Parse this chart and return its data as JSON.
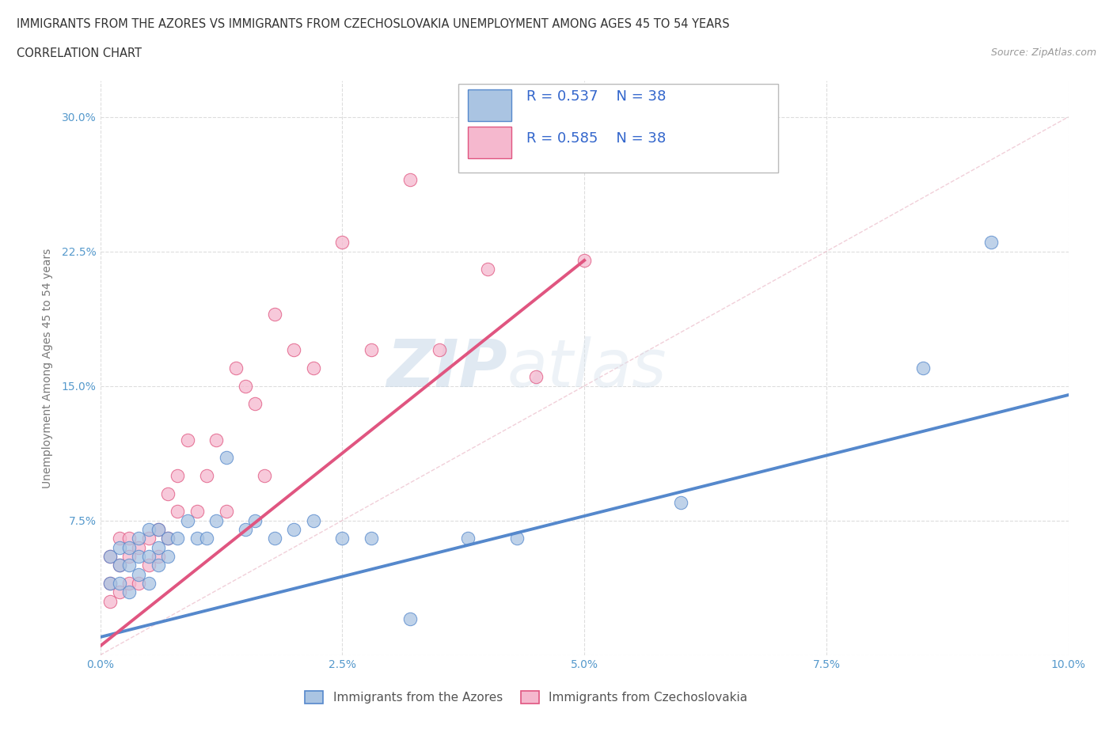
{
  "title_line1": "IMMIGRANTS FROM THE AZORES VS IMMIGRANTS FROM CZECHOSLOVAKIA UNEMPLOYMENT AMONG AGES 45 TO 54 YEARS",
  "title_line2": "CORRELATION CHART",
  "source": "Source: ZipAtlas.com",
  "ylabel": "Unemployment Among Ages 45 to 54 years",
  "legend_label1": "Immigrants from the Azores",
  "legend_label2": "Immigrants from Czechoslovakia",
  "R1": 0.537,
  "N1": 38,
  "R2": 0.585,
  "N2": 38,
  "color1": "#aac4e2",
  "color2": "#f5b8ce",
  "line1_color": "#5588cc",
  "line2_color": "#e05580",
  "xlim": [
    0.0,
    0.1
  ],
  "ylim": [
    0.0,
    0.32
  ],
  "xticks": [
    0.0,
    0.025,
    0.05,
    0.075,
    0.1
  ],
  "xtick_labels": [
    "0.0%",
    "2.5%",
    "5.0%",
    "7.5%",
    "10.0%"
  ],
  "yticks": [
    0.0,
    0.075,
    0.15,
    0.225,
    0.3
  ],
  "ytick_labels": [
    "",
    "7.5%",
    "15.0%",
    "22.5%",
    "30.0%"
  ],
  "watermark_zip": "ZIP",
  "watermark_atlas": "atlas",
  "azores_x": [
    0.001,
    0.001,
    0.002,
    0.002,
    0.002,
    0.003,
    0.003,
    0.003,
    0.004,
    0.004,
    0.004,
    0.005,
    0.005,
    0.005,
    0.006,
    0.006,
    0.006,
    0.007,
    0.007,
    0.008,
    0.009,
    0.01,
    0.011,
    0.012,
    0.013,
    0.015,
    0.016,
    0.018,
    0.02,
    0.022,
    0.025,
    0.028,
    0.032,
    0.038,
    0.043,
    0.06,
    0.085,
    0.092
  ],
  "azores_y": [
    0.04,
    0.055,
    0.04,
    0.05,
    0.06,
    0.035,
    0.05,
    0.06,
    0.045,
    0.055,
    0.065,
    0.04,
    0.055,
    0.07,
    0.05,
    0.06,
    0.07,
    0.055,
    0.065,
    0.065,
    0.075,
    0.065,
    0.065,
    0.075,
    0.11,
    0.07,
    0.075,
    0.065,
    0.07,
    0.075,
    0.065,
    0.065,
    0.02,
    0.065,
    0.065,
    0.085,
    0.16,
    0.23
  ],
  "czech_x": [
    0.001,
    0.001,
    0.001,
    0.002,
    0.002,
    0.002,
    0.003,
    0.003,
    0.003,
    0.004,
    0.004,
    0.005,
    0.005,
    0.006,
    0.006,
    0.007,
    0.007,
    0.008,
    0.008,
    0.009,
    0.01,
    0.011,
    0.012,
    0.013,
    0.014,
    0.015,
    0.016,
    0.017,
    0.018,
    0.02,
    0.022,
    0.025,
    0.028,
    0.032,
    0.035,
    0.04,
    0.045,
    0.05
  ],
  "czech_y": [
    0.03,
    0.04,
    0.055,
    0.035,
    0.05,
    0.065,
    0.04,
    0.055,
    0.065,
    0.04,
    0.06,
    0.05,
    0.065,
    0.055,
    0.07,
    0.065,
    0.09,
    0.08,
    0.1,
    0.12,
    0.08,
    0.1,
    0.12,
    0.08,
    0.16,
    0.15,
    0.14,
    0.1,
    0.19,
    0.17,
    0.16,
    0.23,
    0.17,
    0.265,
    0.17,
    0.215,
    0.155,
    0.22
  ],
  "reg_line1_x0": 0.0,
  "reg_line1_y0": 0.01,
  "reg_line1_x1": 0.1,
  "reg_line1_y1": 0.145,
  "reg_line2_x0": 0.0,
  "reg_line2_y0": 0.005,
  "reg_line2_x1": 0.05,
  "reg_line2_y1": 0.22,
  "ref_line_x0": 0.0,
  "ref_line_y0": 0.0,
  "ref_line_x1": 0.1,
  "ref_line_y1": 0.3
}
